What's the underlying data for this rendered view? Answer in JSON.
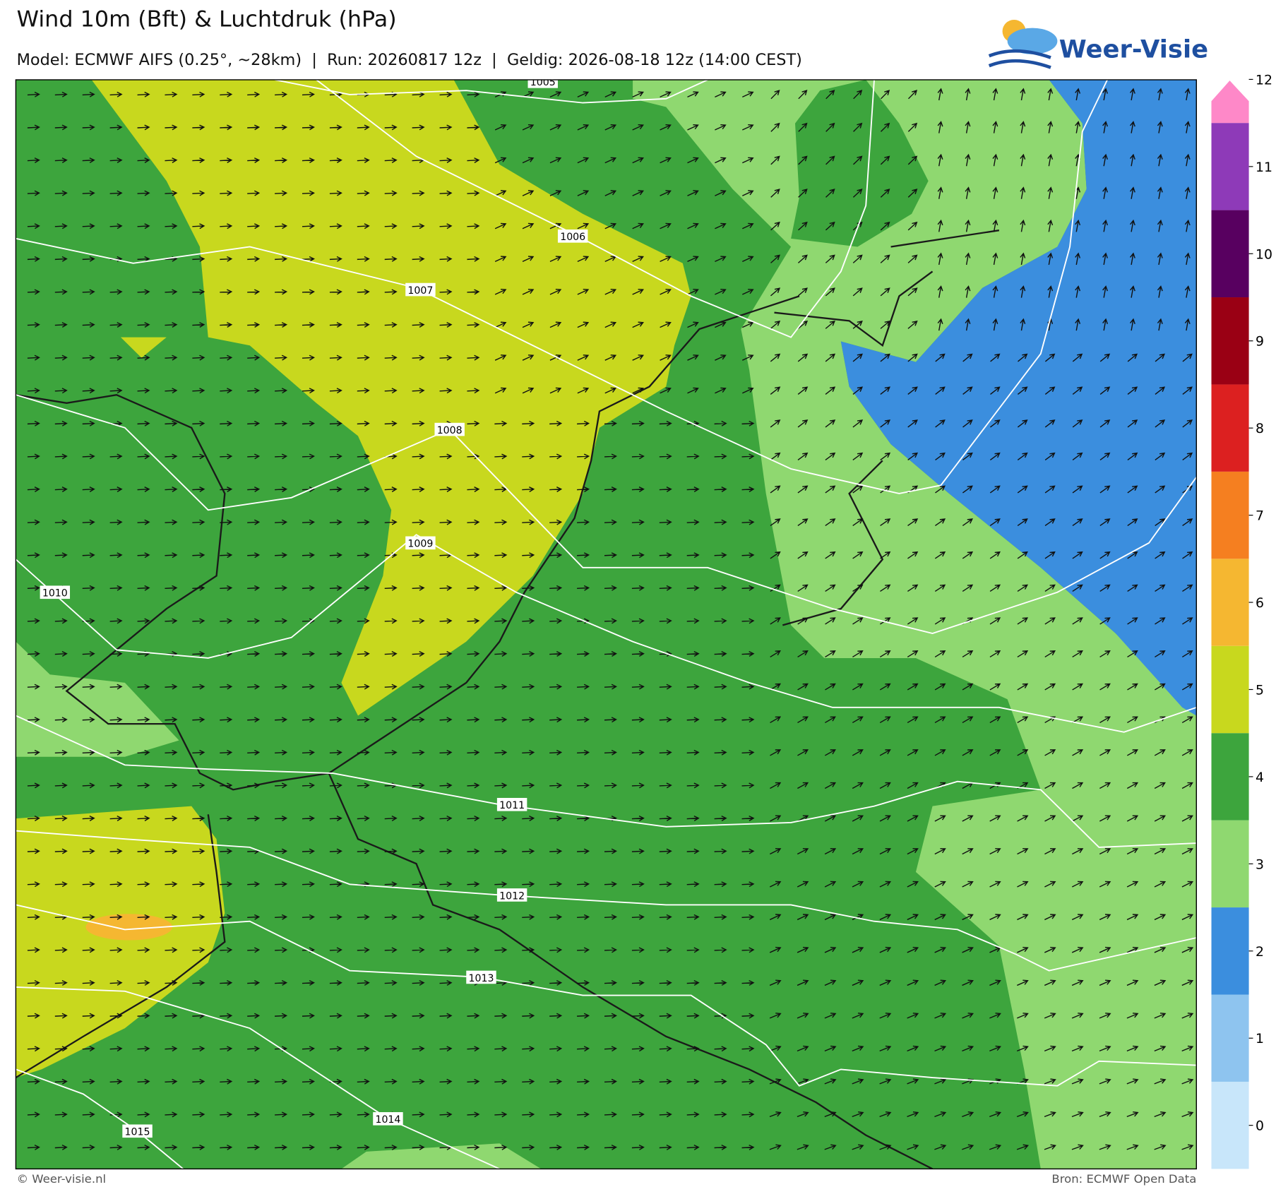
{
  "header": {
    "title": "Wind 10m (Bft) & Luchtdruk (hPa)",
    "subtitle": "Model: ECMWF AIFS (0.25°, ~28km)  |  Run: 20260817 12z  |  Geldig: 2026-08-18 12z (14:00 CEST)",
    "logo": "Weer-Visie"
  },
  "colorbar": {
    "labels": [
      "0",
      "1",
      "2",
      "3",
      "4",
      "5",
      "6",
      "7",
      "8",
      "9",
      "10",
      "11",
      "12"
    ],
    "colors": [
      "#c8e6fa",
      "#8ec4ef",
      "#3b8ede",
      "#8fd870",
      "#3da53d",
      "#c8d81e",
      "#f5b731",
      "#f57f20",
      "#dc2020",
      "#9a0014",
      "#580060",
      "#8e3ab8",
      "#fe88c8"
    ]
  },
  "isobar_labels": [
    "1005",
    "1006",
    "1007",
    "1008",
    "1009",
    "1010",
    "1011",
    "1012",
    "1013",
    "1014",
    "1015"
  ],
  "footer": {
    "left": "© Weer-visie.nl",
    "right": "Bron: ECMWF Open Data"
  }
}
